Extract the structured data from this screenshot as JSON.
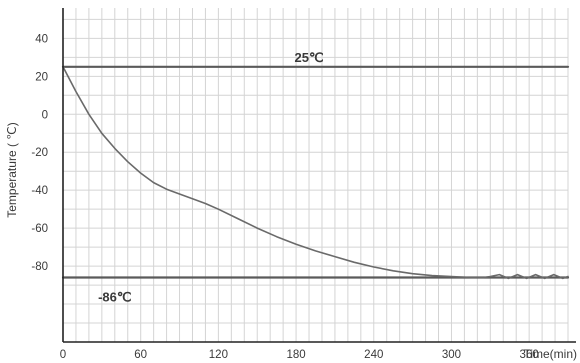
{
  "chart_data": {
    "type": "line",
    "xlabel": "Time(min)",
    "ylabel": "Temperature ( ℃)",
    "xlim": [
      0,
      390
    ],
    "ylim": [
      -120,
      56
    ],
    "xticks": [
      0,
      60,
      120,
      180,
      240,
      300,
      360
    ],
    "xtick_labels": [
      "0",
      "60",
      "120",
      "180",
      "240",
      "300",
      "360"
    ],
    "yticks": [
      40,
      20,
      0,
      -20,
      -40,
      -60,
      -80
    ],
    "ytick_labels": [
      "40",
      "20",
      "0",
      "-20",
      "-40",
      "-60",
      "-80"
    ],
    "grid": true,
    "series": [
      {
        "color": "#5a5a5a",
        "x": [
          0,
          390
        ],
        "y": [
          25,
          25
        ]
      },
      {
        "color": "#5a5a5a",
        "x": [
          0,
          390
        ],
        "y": [
          -86,
          -86
        ]
      },
      {
        "color": "#6a6a6a",
        "x": [
          0,
          10,
          20,
          30,
          40,
          50,
          60,
          70,
          80,
          90,
          100,
          110,
          120,
          135,
          150,
          165,
          180,
          195,
          210,
          225,
          240,
          255,
          270,
          285,
          300,
          315,
          325,
          330,
          337,
          344,
          351,
          358,
          365,
          372,
          379,
          386,
          390
        ],
        "y": [
          25,
          12,
          0,
          -10,
          -18,
          -25,
          -31,
          -36,
          -39.5,
          -42,
          -44.5,
          -47,
          -50,
          -55,
          -60,
          -64.5,
          -68.5,
          -72,
          -75,
          -78,
          -80.5,
          -82.5,
          -84,
          -85,
          -85.5,
          -86,
          -86,
          -85.5,
          -84.5,
          -86.5,
          -84.5,
          -86.5,
          -84.5,
          -86.5,
          -84.5,
          -86.5,
          -85.5
        ]
      }
    ],
    "annotations": [
      {
        "text": "25℃",
        "x": 190,
        "y": 25
      },
      {
        "text": "-86℃",
        "x": 40,
        "y": -86
      }
    ]
  }
}
